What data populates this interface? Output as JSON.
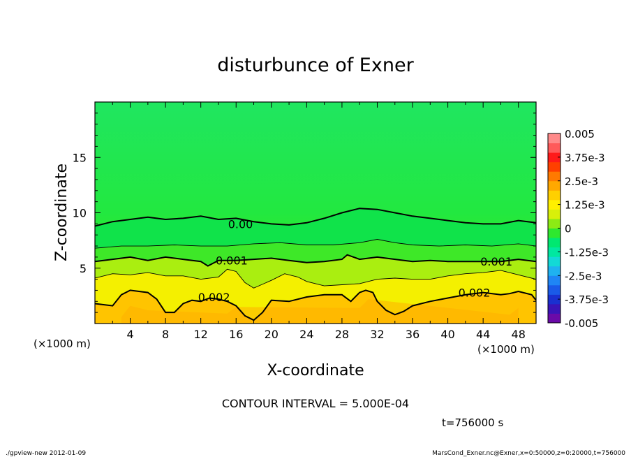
{
  "chart_data": {
    "type": "heatmap",
    "title": "disturbunce of Exner",
    "xlabel": "X-coordinate",
    "ylabel": "Z-coordinate",
    "x_unit_left": "(×1000 m)",
    "x_unit_right": "(×1000 m)",
    "xlim": [
      0,
      50
    ],
    "ylim": [
      0,
      20
    ],
    "xticks": [
      4,
      8,
      12,
      16,
      20,
      24,
      28,
      32,
      36,
      40,
      44,
      48
    ],
    "yticks": [
      5,
      10,
      15
    ],
    "contour_interval_text": "CONTOUR INTERVAL = 5.000E-04",
    "time_text": "t=756000 s",
    "colorbar": {
      "range": [
        -0.005,
        0.005
      ],
      "labels": [
        {
          "text": "0.005",
          "value": 0.005
        },
        {
          "text": "3.75e-3",
          "value": 0.00375
        },
        {
          "text": "2.5e-3",
          "value": 0.0025
        },
        {
          "text": "1.25e-3",
          "value": 0.00125
        },
        {
          "text": "0",
          "value": 0.0
        },
        {
          "text": "-1.25e-3",
          "value": -0.00125
        },
        {
          "text": "-2.5e-3",
          "value": -0.0025
        },
        {
          "text": "-3.75e-3",
          "value": -0.00375
        },
        {
          "text": "-0.005",
          "value": -0.005
        }
      ],
      "colors": [
        "#6a0aa8",
        "#3a14b8",
        "#1a30d0",
        "#1a5ae8",
        "#1f86f5",
        "#1fb2f0",
        "#13d9d6",
        "#00e8a0",
        "#00e870",
        "#2ee82e",
        "#8ceb14",
        "#d8f00a",
        "#fff000",
        "#ffd000",
        "#ffa800",
        "#ff7a00",
        "#ff4000",
        "#ff1a1a",
        "#ff5a5a",
        "#ff8a8a"
      ]
    },
    "contours": [
      {
        "label": "0.00",
        "value": 0.0,
        "bold": true,
        "points": [
          [
            0,
            8.8
          ],
          [
            2,
            9.2
          ],
          [
            4,
            9.4
          ],
          [
            6,
            9.6
          ],
          [
            8,
            9.4
          ],
          [
            10,
            9.5
          ],
          [
            12,
            9.7
          ],
          [
            14,
            9.4
          ],
          [
            16,
            9.5
          ],
          [
            18,
            9.2
          ],
          [
            20,
            9.0
          ],
          [
            22,
            8.9
          ],
          [
            24,
            9.1
          ],
          [
            26,
            9.5
          ],
          [
            28,
            10.0
          ],
          [
            30,
            10.4
          ],
          [
            32,
            10.3
          ],
          [
            34,
            10.0
          ],
          [
            36,
            9.7
          ],
          [
            38,
            9.5
          ],
          [
            40,
            9.3
          ],
          [
            42,
            9.1
          ],
          [
            44,
            9.0
          ],
          [
            46,
            9.0
          ],
          [
            48,
            9.3
          ],
          [
            50,
            9.1
          ]
        ]
      },
      {
        "label": "",
        "value": 0.0005,
        "bold": false,
        "points": [
          [
            0,
            6.8
          ],
          [
            3,
            7.0
          ],
          [
            6,
            7.0
          ],
          [
            9,
            7.1
          ],
          [
            12,
            7.0
          ],
          [
            15,
            7.0
          ],
          [
            18,
            7.2
          ],
          [
            21,
            7.3
          ],
          [
            24,
            7.1
          ],
          [
            27,
            7.1
          ],
          [
            30,
            7.3
          ],
          [
            32,
            7.6
          ],
          [
            34,
            7.3
          ],
          [
            36,
            7.1
          ],
          [
            39,
            7.0
          ],
          [
            42,
            7.1
          ],
          [
            45,
            7.0
          ],
          [
            48,
            7.2
          ],
          [
            50,
            7.0
          ]
        ]
      },
      {
        "label": "0.001",
        "value": 0.001,
        "bold": true,
        "points": [
          [
            0,
            5.6
          ],
          [
            2,
            5.8
          ],
          [
            4,
            6.0
          ],
          [
            6,
            5.7
          ],
          [
            8,
            6.0
          ],
          [
            10,
            5.8
          ],
          [
            12,
            5.6
          ],
          [
            12.8,
            5.2
          ],
          [
            14,
            5.7
          ],
          [
            16,
            5.7
          ],
          [
            18,
            5.8
          ],
          [
            20,
            5.9
          ],
          [
            22,
            5.7
          ],
          [
            24,
            5.5
          ],
          [
            26,
            5.6
          ],
          [
            28,
            5.8
          ],
          [
            28.6,
            6.2
          ],
          [
            30,
            5.8
          ],
          [
            32,
            6.0
          ],
          [
            34,
            5.8
          ],
          [
            36,
            5.6
          ],
          [
            38,
            5.7
          ],
          [
            40,
            5.6
          ],
          [
            42,
            5.6
          ],
          [
            44,
            5.6
          ],
          [
            46,
            5.6
          ],
          [
            48,
            5.8
          ],
          [
            50,
            5.6
          ]
        ]
      },
      {
        "label": "",
        "value": 0.0015,
        "bold": false,
        "points": [
          [
            0,
            4.1
          ],
          [
            2,
            4.5
          ],
          [
            4,
            4.4
          ],
          [
            6,
            4.6
          ],
          [
            8,
            4.3
          ],
          [
            10,
            4.3
          ],
          [
            12,
            4.0
          ],
          [
            14,
            4.2
          ],
          [
            15,
            4.9
          ],
          [
            16,
            4.7
          ],
          [
            17,
            3.7
          ],
          [
            18,
            3.2
          ],
          [
            20,
            3.9
          ],
          [
            21.5,
            4.5
          ],
          [
            23,
            4.2
          ],
          [
            24,
            3.8
          ],
          [
            26,
            3.4
          ],
          [
            28,
            3.5
          ],
          [
            30,
            3.6
          ],
          [
            32,
            4.0
          ],
          [
            34,
            4.1
          ],
          [
            36,
            4.0
          ],
          [
            38,
            4.0
          ],
          [
            40,
            4.3
          ],
          [
            42,
            4.5
          ],
          [
            44,
            4.6
          ],
          [
            46,
            4.8
          ],
          [
            48,
            4.4
          ],
          [
            50,
            4.0
          ]
        ]
      },
      {
        "label": "0.002",
        "value": 0.002,
        "bold": true,
        "points": [
          [
            0,
            1.8
          ],
          [
            2,
            1.6
          ],
          [
            3,
            2.6
          ],
          [
            4,
            3.0
          ],
          [
            6,
            2.8
          ],
          [
            7,
            2.2
          ],
          [
            8,
            1.0
          ],
          [
            9,
            1.0
          ],
          [
            10,
            1.8
          ],
          [
            11,
            2.1
          ],
          [
            12,
            2.0
          ],
          [
            13,
            2.3
          ],
          [
            14,
            2.2
          ],
          [
            15,
            2.0
          ],
          [
            16,
            1.6
          ],
          [
            17,
            0.7
          ],
          [
            18,
            0.3
          ],
          [
            19,
            1.0
          ],
          [
            20,
            2.1
          ],
          [
            22,
            2.0
          ],
          [
            24,
            2.4
          ],
          [
            26,
            2.6
          ],
          [
            28,
            2.6
          ],
          [
            29,
            2.0
          ],
          [
            30,
            2.8
          ],
          [
            30.7,
            3.0
          ],
          [
            31.5,
            2.8
          ],
          [
            32,
            2.0
          ],
          [
            33,
            1.2
          ],
          [
            34,
            0.8
          ],
          [
            35,
            1.1
          ],
          [
            36,
            1.6
          ],
          [
            38,
            2.0
          ],
          [
            40,
            2.3
          ],
          [
            42,
            2.6
          ],
          [
            44,
            2.8
          ],
          [
            46,
            2.6
          ],
          [
            47,
            2.7
          ],
          [
            48,
            2.9
          ],
          [
            49.5,
            2.6
          ],
          [
            50,
            2.1
          ]
        ]
      }
    ],
    "contour_label_positions": [
      {
        "text": "0.00",
        "x": 16.5,
        "y": 9.0
      },
      {
        "text": "0.001",
        "x": 15.5,
        "y": 5.7
      },
      {
        "text": "0.001",
        "x": 45.5,
        "y": 5.6
      },
      {
        "text": "0.002",
        "x": 13.5,
        "y": 2.4
      },
      {
        "text": "0.002",
        "x": 43.0,
        "y": 2.8
      }
    ]
  },
  "footer": {
    "left": "./gpview-new   2012-01-09",
    "right": "MarsCond_Exner.nc@Exner,x=0:50000,z=0:20000,t=756000"
  }
}
